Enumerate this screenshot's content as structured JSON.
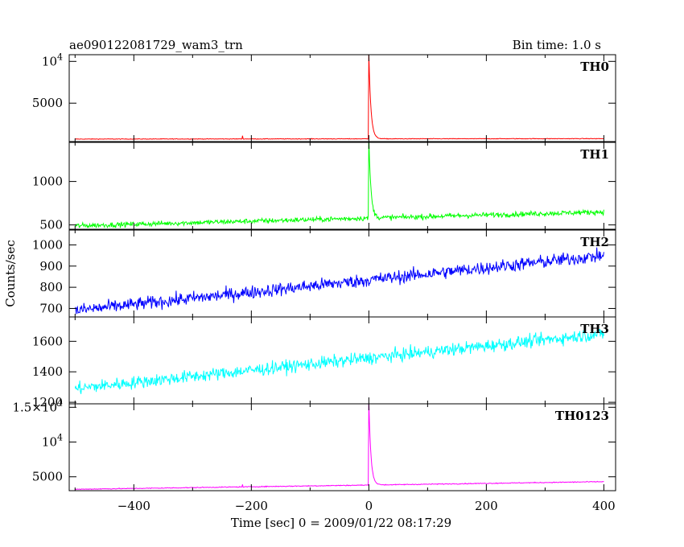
{
  "header": {
    "title": "ae090122081729_wam3_trn",
    "bin_time": "Bin time: 1.0 s"
  },
  "chart_data": {
    "type": "line",
    "xlabel": "Time [sec] 0 = 2009/01/22 08:17:29",
    "ylabel": "Counts/sec",
    "xlim": [
      -510,
      420
    ],
    "x_ticks": [
      -400,
      -200,
      0,
      200,
      400
    ],
    "x_tick_labels": [
      "−400",
      "−200",
      "0",
      "200",
      "400"
    ],
    "x_range": [
      -500,
      400
    ],
    "panels": [
      {
        "name": "TH0",
        "color": "#ff0000",
        "ylim": [
          400,
          10800
        ],
        "y_ticks": [
          5000,
          10000
        ],
        "y_tick_labels": [
          "5000",
          "10^4"
        ],
        "baseline_start": 700,
        "baseline_end": 750,
        "noise": 35,
        "peak": 11000,
        "peak_width": 3.5,
        "minor_spike_x": -215,
        "minor_spike_value": 1100
      },
      {
        "name": "TH1",
        "color": "#00ff00",
        "ylim": [
          450,
          1450
        ],
        "y_ticks": [
          500,
          1000
        ],
        "y_tick_labels": [
          "500",
          "1000"
        ],
        "baseline_start": 490,
        "baseline_end": 650,
        "noise": 28,
        "peak": 1420,
        "peak_width": 3.5
      },
      {
        "name": "TH2",
        "color": "#0000ff",
        "ylim": [
          660,
          1070
        ],
        "y_ticks": [
          700,
          800,
          900,
          1000
        ],
        "y_tick_labels": [
          "700",
          "800",
          "900",
          "1000"
        ],
        "baseline_start": 690,
        "baseline_end": 950,
        "noise": 30
      },
      {
        "name": "TH3",
        "color": "#00ffff",
        "ylim": [
          1190,
          1760
        ],
        "y_ticks": [
          1200,
          1400,
          1600
        ],
        "y_tick_labels": [
          "1200",
          "1400",
          "1600"
        ],
        "baseline_start": 1290,
        "baseline_end": 1650,
        "noise": 40
      },
      {
        "name": "TH0123",
        "color": "#ff00ff",
        "ylim": [
          3000,
          15500
        ],
        "y_ticks": [
          5000,
          10000,
          15000
        ],
        "y_tick_labels": [
          "5000",
          "10^4",
          "1.5×10^4"
        ],
        "baseline_start": 3200,
        "baseline_end": 4300,
        "noise": 60,
        "peak": 15400,
        "peak_width": 3.5,
        "minor_spike_x": -215,
        "minor_spike_value": 3900
      }
    ]
  }
}
